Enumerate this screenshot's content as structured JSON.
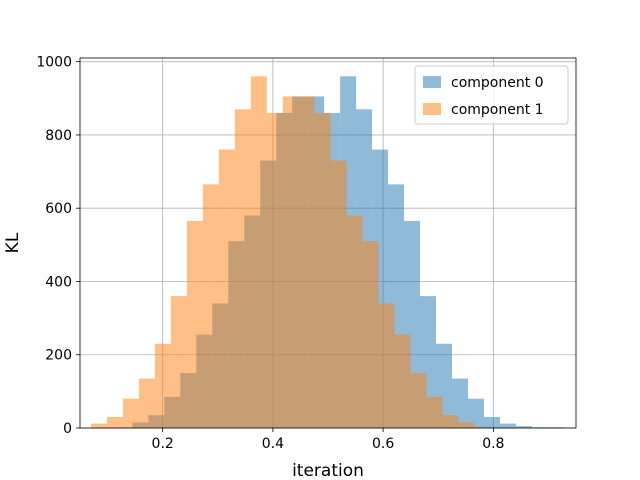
{
  "chart_data": {
    "type": "bar",
    "subtype": "histogram",
    "xlabel": "iteration",
    "ylabel": "KL",
    "xlim": [
      0.05,
      0.95
    ],
    "ylim": [
      0,
      1010
    ],
    "xticks": [
      0.2,
      0.4,
      0.6,
      0.8
    ],
    "yticks": [
      0,
      200,
      400,
      600,
      800,
      1000
    ],
    "grid": true,
    "legend_position": "top-right",
    "overlap_color": "#c8a07a",
    "series": [
      {
        "name": "component 0",
        "color": "#1f77b4",
        "opacity": 0.5,
        "bin_edges": [
          0.145,
          0.174,
          0.203,
          0.232,
          0.261,
          0.29,
          0.319,
          0.348,
          0.377,
          0.406,
          0.435,
          0.464,
          0.493,
          0.522,
          0.551,
          0.58,
          0.609,
          0.638,
          0.667,
          0.696,
          0.725,
          0.754,
          0.783,
          0.812,
          0.841,
          0.87,
          0.899,
          0.928
        ],
        "values": [
          15,
          35,
          85,
          150,
          255,
          340,
          510,
          580,
          730,
          860,
          905,
          905,
          860,
          960,
          870,
          760,
          665,
          565,
          360,
          230,
          135,
          80,
          30,
          12,
          5,
          2,
          2
        ]
      },
      {
        "name": "component 1",
        "color": "#ff7f0e",
        "opacity": 0.5,
        "bin_edges": [
          0.07,
          0.099,
          0.128,
          0.157,
          0.186,
          0.215,
          0.244,
          0.273,
          0.302,
          0.331,
          0.36,
          0.389,
          0.418,
          0.447,
          0.476,
          0.505,
          0.534,
          0.563,
          0.592,
          0.621,
          0.65,
          0.679,
          0.708,
          0.737,
          0.766,
          0.795
        ],
        "values": [
          12,
          30,
          80,
          135,
          230,
          360,
          565,
          665,
          760,
          870,
          960,
          860,
          905,
          905,
          860,
          730,
          580,
          510,
          340,
          255,
          150,
          85,
          35,
          15,
          3
        ]
      }
    ]
  }
}
